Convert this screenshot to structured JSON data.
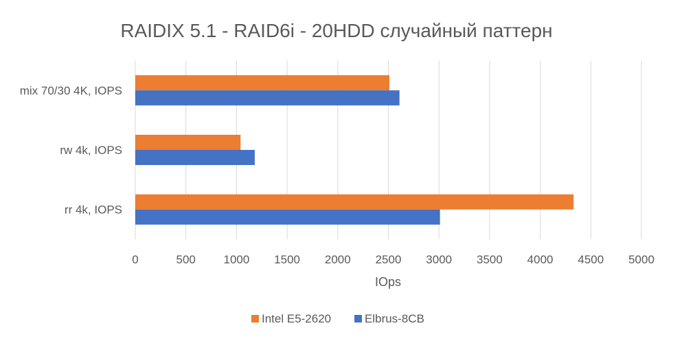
{
  "chart_data": {
    "type": "bar",
    "orientation": "horizontal",
    "title": "RAIDIX 5.1 - RAID6i - 20HDD случайный паттерн",
    "xlabel": "IOps",
    "ylabel": "",
    "xlim": [
      0,
      5000
    ],
    "x_ticks": [
      0,
      500,
      1000,
      1500,
      2000,
      2500,
      3000,
      3500,
      4000,
      4500,
      5000
    ],
    "categories": [
      "mix 70/30 4K, IOPS",
      "rw 4k, IOPS",
      "rr 4k, IOPS"
    ],
    "series": [
      {
        "name": "Intel E5-2620",
        "color": "#ED7D31",
        "values": [
          2510,
          1040,
          4330
        ]
      },
      {
        "name": "Elbrus-8CB",
        "color": "#4472C4",
        "values": [
          2610,
          1180,
          3010
        ]
      }
    ],
    "grid": true,
    "legend_position": "bottom"
  }
}
